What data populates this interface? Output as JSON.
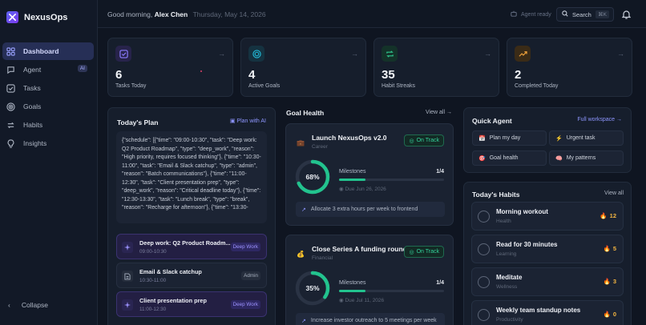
{
  "app": {
    "name": "NexusOps"
  },
  "sidebar": {
    "items": [
      {
        "label": "Dashboard",
        "icon": "dashboard-icon"
      },
      {
        "label": "Agent",
        "icon": "agent-icon",
        "badge": "AI"
      },
      {
        "label": "Tasks",
        "icon": "tasks-icon"
      },
      {
        "label": "Goals",
        "icon": "goals-icon"
      },
      {
        "label": "Habits",
        "icon": "habits-icon"
      },
      {
        "label": "Insights",
        "icon": "insights-icon"
      }
    ],
    "collapse_label": "Collapse"
  },
  "header": {
    "greeting": "Good morning,",
    "user": "Alex Chen",
    "date": "Thursday, May 14, 2026",
    "agent_status": "Agent ready",
    "search_label": "Search",
    "search_shortcut": "⌘K"
  },
  "stats": [
    {
      "value": "6",
      "label": "Tasks Today",
      "color": "#8b7cff"
    },
    {
      "value": "4",
      "label": "Active Goals",
      "color": "#22b8d6"
    },
    {
      "value": "35",
      "label": "Habit Streaks",
      "color": "#2fc98f"
    },
    {
      "value": "2",
      "label": "Completed Today",
      "color": "#f0a23a"
    }
  ],
  "plan": {
    "title": "Today's Plan",
    "action": "Plan with AI",
    "json_text": "{\"schedule\": [{\"time\": \"09:00-10:30\", \"task\": \"Deep work: Q2 Product Roadmap\", \"type\": \"deep_work\", \"reason\": \"High priority, requires focused thinking\"}, {\"time\": \"10:30-11:00\", \"task\": \"Email & Slack catchup\", \"type\": \"admin\", \"reason\": \"Batch communications\"}, {\"time\": \"11:00-12:30\", \"task\": \"Client presentation prep\", \"type\": \"deep_work\", \"reason\": \"Critical deadline today\"}, {\"time\": \"12:30-13:30\", \"task\": \"Lunch break\", \"type\": \"break\", \"reason\": \"Recharge for afternoon\"}, {\"time\": \"13:30-",
    "items": [
      {
        "title": "Deep work: Q2 Product Roadm...",
        "time": "09:00-10:30",
        "tag": "Deep Work",
        "kind": "deep"
      },
      {
        "title": "Email & Slack catchup",
        "time": "10:30-11:00",
        "tag": "Admin",
        "kind": "admin"
      },
      {
        "title": "Client presentation prep",
        "time": "11:00-12:30",
        "tag": "Deep Work",
        "kind": "deep"
      }
    ]
  },
  "goals": {
    "title": "Goal Health",
    "view_all": "View all",
    "cards": [
      {
        "icon": "💼",
        "title": "Launch NexusOps v2.0",
        "category": "Career",
        "status": "On Track",
        "progress": 68,
        "percent_label": "68%",
        "milestones_label": "Milestones",
        "milestones": "1/4",
        "milestone_progress": 0.25,
        "due": "Due Jun 26, 2026",
        "hint": "Allocate 3 extra hours per week to frontend"
      },
      {
        "icon": "💰",
        "title": "Close Series A funding round",
        "category": "Financial",
        "status": "On Track",
        "progress": 35,
        "percent_label": "35%",
        "milestones_label": "Milestones",
        "milestones": "1/4",
        "milestone_progress": 0.25,
        "due": "Due Jul 11, 2026",
        "hint": "Increase investor outreach to 5 meetings per week"
      }
    ]
  },
  "quick_agent": {
    "title": "Quick Agent",
    "action": "Full workspace",
    "buttons": [
      {
        "icon": "📅",
        "label": "Plan my day"
      },
      {
        "icon": "⚡",
        "label": "Urgent task"
      },
      {
        "icon": "🎯",
        "label": "Goal health"
      },
      {
        "icon": "🧠",
        "label": "My patterns"
      }
    ]
  },
  "habits": {
    "title": "Today's Habits",
    "view_all": "View all",
    "items": [
      {
        "name": "Morning workout",
        "category": "Health",
        "streak": "12"
      },
      {
        "name": "Read for 30 minutes",
        "category": "Learning",
        "streak": "5"
      },
      {
        "name": "Meditate",
        "category": "Wellness",
        "streak": "3"
      },
      {
        "name": "Weekly team standup notes",
        "category": "Productivity",
        "streak": "0"
      }
    ]
  }
}
